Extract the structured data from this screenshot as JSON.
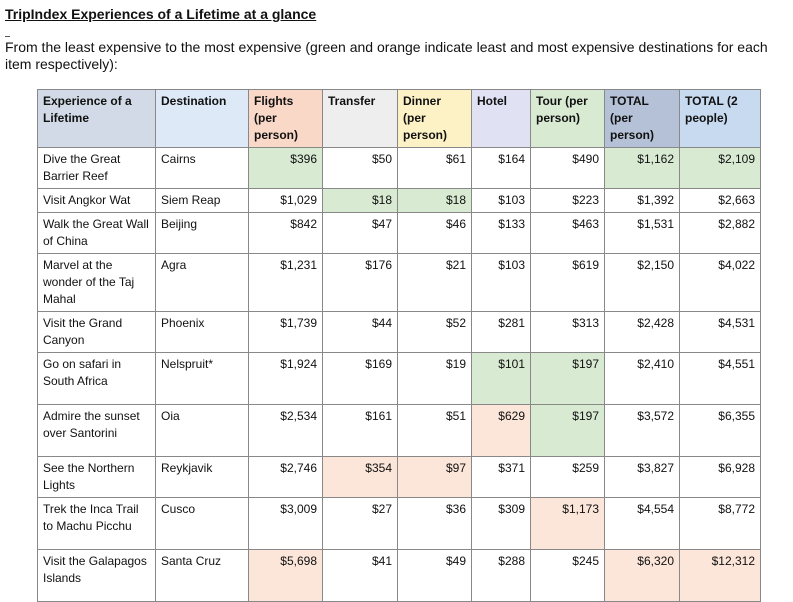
{
  "title": "TripIndex Experiences of a Lifetime at a glance",
  "subtitle": "From the least expensive to the most expensive (green and orange indicate least and most expensive destinations for each item respectively):",
  "colors": {
    "green": "#d9ead3",
    "orange": "#fce5d9",
    "experience_header": "#d1dae6",
    "destination_header": "#dde9f6",
    "flights_header": "#f9d8c8",
    "transfer_header": "#eeeeee",
    "dinner_header": "#fdf2c6",
    "hotel_header": "#e0e2f4",
    "tour_header": "#d9ead3",
    "total_per_header": "#b4c1d6",
    "total_2_header": "#c7daf0"
  },
  "headers": [
    {
      "label": "Experience of a Lifetime",
      "bg": "#d1dae6"
    },
    {
      "label": "Destination",
      "bg": "#dde9f6"
    },
    {
      "label": "Flights (per person)",
      "bg": "#f9d8c8"
    },
    {
      "label": "Transfer",
      "bg": "#eeeeee"
    },
    {
      "label": "Dinner (per person)",
      "bg": "#fdf2c6"
    },
    {
      "label": "Hotel",
      "bg": "#e0e2f4"
    },
    {
      "label": "Tour (per person)",
      "bg": "#d9ead3"
    },
    {
      "label": "TOTAL (per person)",
      "bg": "#b4c1d6"
    },
    {
      "label": "TOTAL (2 people)",
      "bg": "#c7daf0"
    }
  ],
  "rows": [
    {
      "experience": "Dive the Great Barrier Reef",
      "destination": "Cairns",
      "flights": "$396",
      "transfer": "$50",
      "dinner": "$61",
      "hotel": "$164",
      "tour": "$490",
      "total_pp": "$1,162",
      "total_2": "$2,109",
      "hl": {
        "flights": "green",
        "total_pp": "green",
        "total_2": "green"
      }
    },
    {
      "experience": "Visit Angkor Wat",
      "destination": "Siem Reap",
      "flights": "$1,029",
      "transfer": "$18",
      "dinner": "$18",
      "hotel": "$103",
      "tour": "$223",
      "total_pp": "$1,392",
      "total_2": "$2,663",
      "hl": {
        "transfer": "green",
        "dinner": "green"
      },
      "exp_valign": "bottom"
    },
    {
      "experience": "Walk the Great Wall of China",
      "destination": "Beijing",
      "flights": "$842",
      "transfer": "$47",
      "dinner": "$46",
      "hotel": "$133",
      "tour": "$463",
      "total_pp": "$1,531",
      "total_2": "$2,882",
      "hl": {}
    },
    {
      "experience": "Marvel at the wonder of the Taj Mahal",
      "destination": "Agra",
      "flights": "$1,231",
      "transfer": "$176",
      "dinner": "$21",
      "hotel": "$103",
      "tour": "$619",
      "total_pp": "$2,150",
      "total_2": "$4,022",
      "hl": {}
    },
    {
      "experience": "Visit the Grand Canyon",
      "destination": "Phoenix",
      "flights": "$1,739",
      "transfer": "$44",
      "dinner": "$52",
      "hotel": "$281",
      "tour": "$313",
      "total_pp": "$2,428",
      "total_2": "$4,531",
      "hl": {}
    },
    {
      "experience": "Go on safari in South Africa",
      "destination": "Nelspruit*",
      "flights": "$1,924",
      "transfer": "$169",
      "dinner": "$19",
      "hotel": "$101",
      "tour": "$197",
      "total_pp": "$2,410",
      "total_2": "$4,551",
      "hl": {
        "hotel": "green",
        "tour": "green"
      },
      "exp_valign": "bottom"
    },
    {
      "experience": "Admire the sunset over Santorini",
      "destination": "Oia",
      "flights": "$2,534",
      "transfer": "$161",
      "dinner": "$51",
      "hotel": "$629",
      "tour": "$197",
      "total_pp": "$3,572",
      "total_2": "$6,355",
      "hl": {
        "hotel": "orange",
        "tour": "green"
      }
    },
    {
      "experience": "See the Northern Lights",
      "destination": "Reykjavik",
      "flights": "$2,746",
      "transfer": "$354",
      "dinner": "$97",
      "hotel": "$371",
      "tour": "$259",
      "total_pp": "$3,827",
      "total_2": "$6,928",
      "hl": {
        "transfer": "orange",
        "dinner": "orange"
      },
      "exp_valign": "bottom"
    },
    {
      "experience": "Trek the Inca Trail to Machu Picchu",
      "destination": "Cusco",
      "flights": "$3,009",
      "transfer": "$27",
      "dinner": "$36",
      "hotel": "$309",
      "tour": "$1,173",
      "total_pp": "$4,554",
      "total_2": "$8,772",
      "hl": {
        "tour": "orange"
      }
    },
    {
      "experience": "Visit the Galapagos Islands",
      "destination": "Santa Cruz",
      "flights": "$5,698",
      "transfer": "$41",
      "dinner": "$49",
      "hotel": "$288",
      "tour": "$245",
      "total_pp": "$6,320",
      "total_2": "$12,312",
      "hl": {
        "flights": "orange",
        "total_pp": "orange",
        "total_2": "orange"
      }
    }
  ]
}
